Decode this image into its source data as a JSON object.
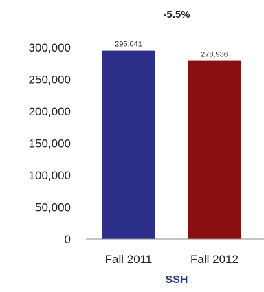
{
  "chart_data": {
    "type": "bar",
    "title": "-5.5%",
    "xlabel": "SSH",
    "ylabel": "",
    "categories": [
      "Fall 2011",
      "Fall 2012"
    ],
    "values": [
      295041,
      278936
    ],
    "data_labels": [
      "295,041",
      "278,936"
    ],
    "colors": [
      "#2b2f8a",
      "#8a0f0f"
    ],
    "ylim": [
      0,
      300000
    ],
    "y_ticks": [
      0,
      50000,
      100000,
      150000,
      200000,
      250000,
      300000
    ],
    "y_tick_labels": [
      "0",
      "50,000",
      "100,000",
      "150,000",
      "200,000",
      "250,000",
      "300,000"
    ],
    "grid": false,
    "legend": "none",
    "xlabel_color": "#2b3a8c"
  }
}
